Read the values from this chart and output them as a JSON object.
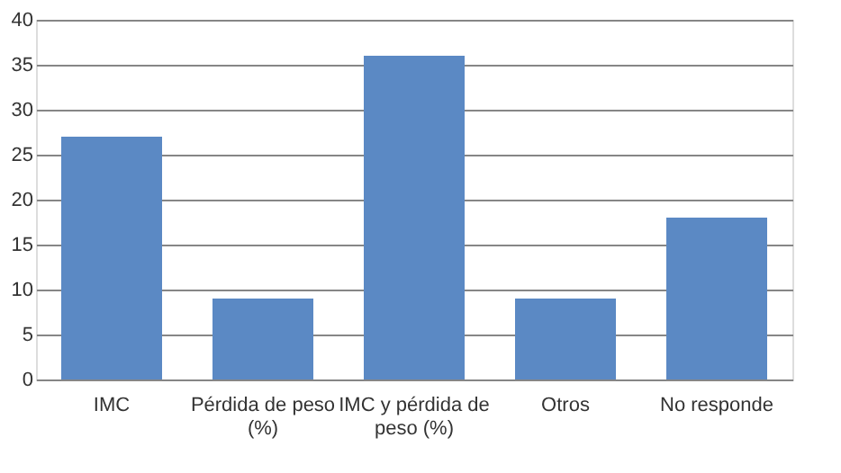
{
  "chart_data": {
    "type": "bar",
    "categories": [
      "IMC",
      "Pérdida de peso (%)",
      "IMC y pérdida de peso (%)",
      "Otros",
      "No responde"
    ],
    "values": [
      27,
      9,
      36,
      9,
      18
    ],
    "color": "#5b89c4",
    "ylim": [
      0,
      40
    ],
    "yticks": [
      0,
      5,
      10,
      15,
      20,
      25,
      30,
      35,
      40
    ],
    "grid": "y"
  }
}
